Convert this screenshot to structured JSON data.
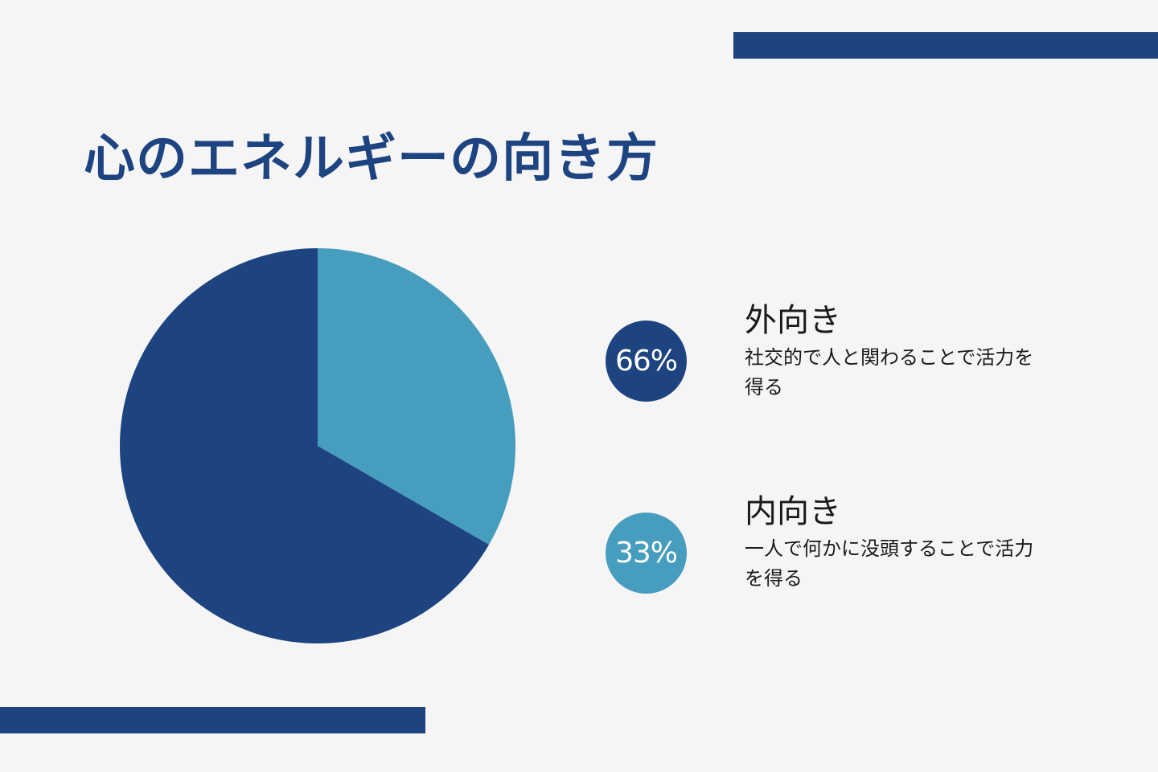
{
  "page": {
    "title": "心のエネルギーの向き方",
    "accent_color": "#1d4480",
    "background_color": "#f5f5f6"
  },
  "items": [
    {
      "percent_label": "66%",
      "title": "外向き",
      "description": "社交的で人と関わることで活力を得る",
      "color": "#1d4480"
    },
    {
      "percent_label": "33%",
      "title": "内向き",
      "description": "一人で何かに没頭することで活力を得る",
      "color": "#479dbd"
    }
  ],
  "chart_data": {
    "type": "pie",
    "slices": [
      {
        "label": "外向き",
        "value": 66,
        "color": "#1d4480"
      },
      {
        "label": "内向き",
        "value": 33,
        "color": "#479dbd"
      }
    ]
  }
}
